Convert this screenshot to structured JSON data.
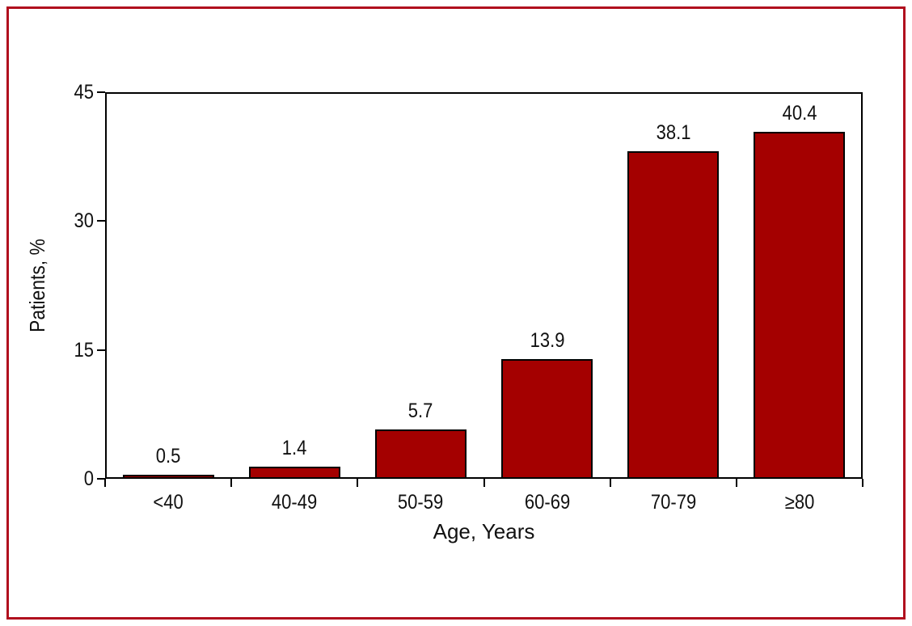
{
  "figure": {
    "background": "#FFFFFF",
    "border_color": "#B00F1E"
  },
  "chart_data": {
    "type": "bar",
    "title": "",
    "categories": [
      "<40",
      "40-49",
      "50-59",
      "60-69",
      "70-79",
      "≥80"
    ],
    "values": [
      0.5,
      1.4,
      5.7,
      13.9,
      38.1,
      40.4
    ],
    "value_labels": [
      "0.5",
      "1.4",
      "5.7",
      "13.9",
      "38.1",
      "40.4"
    ],
    "xlabel": "Age, Years",
    "ylabel": "Patients, %",
    "ylim": [
      0,
      45
    ],
    "yticks": [
      0,
      15,
      30,
      45
    ],
    "grid": false,
    "legend": "none",
    "bar_color": "#A40000",
    "bar_border_color": "#000000",
    "axis_color": "#000000"
  }
}
